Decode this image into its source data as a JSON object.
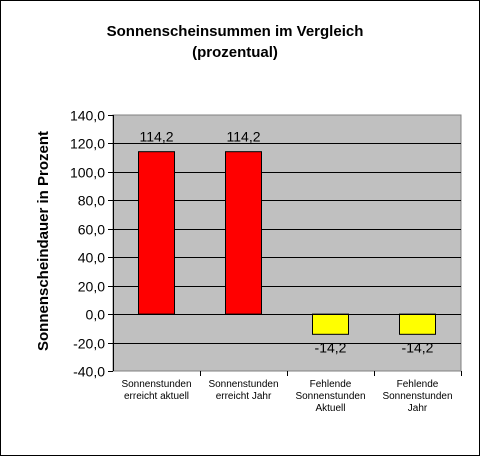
{
  "chart_data": {
    "type": "bar",
    "title": "Sonnenscheinsummen  im  Vergleich",
    "subtitle": "(prozentual)",
    "ylabel": "Sonnenscheindauer  in  Prozent",
    "xlabel": "",
    "ylim": [
      -40,
      140
    ],
    "ytick_step": 20,
    "ytick_labels": [
      "-40,0",
      "-20,0",
      "0,0",
      "20,0",
      "40,0",
      "60,0",
      "80,0",
      "100,0",
      "120,0",
      "140,0"
    ],
    "grid": "horizontal",
    "legend": "none",
    "plot_background": "#c0c0c0",
    "categories": [
      [
        "Sonnenstunden",
        "erreicht aktuell"
      ],
      [
        "Sonnenstunden",
        "erreicht Jahr"
      ],
      [
        "Fehlende",
        "Sonnenstunden",
        "Aktuell"
      ],
      [
        "Fehlende",
        "Sonnenstunden",
        "Jahr"
      ]
    ],
    "values": [
      114.2,
      114.2,
      -14.2,
      -14.2
    ],
    "value_labels": [
      "114,2",
      "114,2",
      "-14,2",
      "-14,2"
    ],
    "bar_colors": [
      "#ff0000",
      "#ff0000",
      "#ffff00",
      "#ffff00"
    ]
  }
}
